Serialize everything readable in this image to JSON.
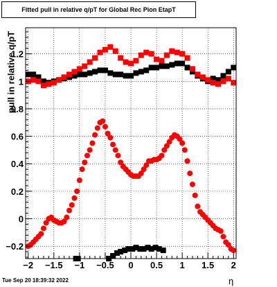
{
  "title": "Fitted pull in relative q/pT for Global Rec Pion EtapT",
  "timestamp": "Tue Sep 20 18:39:32 2022",
  "chart_data": {
    "type": "scatter",
    "title": "Fitted pull in relative q/pT for Global Rec Pion EtapT",
    "xlabel": "η",
    "ylabel": "pull in relative q/pT",
    "xlim": [
      -2.05,
      2.05
    ],
    "ylim": [
      -0.29,
      1.39
    ],
    "xticks": [
      -2,
      -1.5,
      -1,
      -0.5,
      0,
      0.5,
      1,
      1.5,
      2
    ],
    "xtick_labels": [
      "−2",
      "−1.5",
      "−1",
      "−0.5",
      "0",
      "0.5",
      "1",
      "1.5",
      "2"
    ],
    "yticks": [
      -0.2,
      0,
      0.2,
      0.4,
      0.6,
      0.8,
      1,
      1.2
    ],
    "ytick_labels": [
      "−0.2",
      "0",
      "0.2",
      "0.4",
      "0.6",
      "0.8",
      "1",
      "1.2"
    ],
    "grid": true,
    "series": [
      {
        "color": "#000000",
        "marker": "square",
        "points": [
          [
            -2.0,
            1.05
          ],
          [
            -1.9,
            1.05
          ],
          [
            -1.8,
            1.03
          ],
          [
            -1.7,
            1.0
          ],
          [
            -1.6,
            0.99
          ],
          [
            -1.5,
            1.0
          ],
          [
            -1.4,
            1.01
          ],
          [
            -1.3,
            1.02
          ],
          [
            -1.2,
            1.03
          ],
          [
            -1.1,
            1.04
          ],
          [
            -1.0,
            1.05
          ],
          [
            -0.9,
            1.05
          ],
          [
            -0.8,
            1.06
          ],
          [
            -0.7,
            1.07
          ],
          [
            -0.6,
            1.08
          ],
          [
            -0.5,
            1.08
          ],
          [
            -0.4,
            1.06
          ],
          [
            -0.3,
            1.05
          ],
          [
            -0.2,
            1.05
          ],
          [
            -0.1,
            1.04
          ],
          [
            0.0,
            1.04
          ],
          [
            0.1,
            1.06
          ],
          [
            0.2,
            1.07
          ],
          [
            0.3,
            1.08
          ],
          [
            0.4,
            1.1
          ],
          [
            0.5,
            1.1
          ],
          [
            0.6,
            1.11
          ],
          [
            0.7,
            1.11
          ],
          [
            0.8,
            1.12
          ],
          [
            0.9,
            1.13
          ],
          [
            1.0,
            1.13
          ],
          [
            1.1,
            1.1
          ],
          [
            1.2,
            1.07
          ],
          [
            1.3,
            1.04
          ],
          [
            1.4,
            1.02
          ],
          [
            1.5,
            1.0
          ],
          [
            1.6,
            1.02
          ],
          [
            1.7,
            1.01
          ],
          [
            1.8,
            1.04
          ],
          [
            1.9,
            1.07
          ],
          [
            2.0,
            1.1
          ],
          [
            -1.07,
            -0.29
          ],
          [
            -1.03,
            -0.29
          ],
          [
            -0.43,
            -0.29
          ],
          [
            -0.35,
            -0.27
          ],
          [
            -0.27,
            -0.25
          ],
          [
            -0.2,
            -0.24
          ],
          [
            -0.12,
            -0.23
          ],
          [
            -0.05,
            -0.22
          ],
          [
            0.03,
            -0.22
          ],
          [
            0.1,
            -0.21
          ],
          [
            0.18,
            -0.22
          ],
          [
            0.25,
            -0.22
          ],
          [
            0.33,
            -0.21
          ],
          [
            0.4,
            -0.22
          ],
          [
            0.48,
            -0.21
          ],
          [
            0.55,
            -0.22
          ],
          [
            0.63,
            -0.23
          ]
        ]
      },
      {
        "color": "#ff0000",
        "marker": "square",
        "points": [
          [
            -2.0,
            1.0
          ],
          [
            -1.9,
            1.01
          ],
          [
            -1.8,
            1.0
          ],
          [
            -1.7,
            0.97
          ],
          [
            -1.6,
            0.98
          ],
          [
            -1.5,
            0.99
          ],
          [
            -1.4,
            1.01
          ],
          [
            -1.3,
            1.03
          ],
          [
            -1.2,
            1.05
          ],
          [
            -1.1,
            1.07
          ],
          [
            -1.0,
            1.09
          ],
          [
            -0.9,
            1.11
          ],
          [
            -0.8,
            1.14
          ],
          [
            -0.7,
            1.17
          ],
          [
            -0.6,
            1.21
          ],
          [
            -0.5,
            1.23
          ],
          [
            -0.4,
            1.25
          ],
          [
            -0.3,
            1.22
          ],
          [
            -0.2,
            1.17
          ],
          [
            -0.1,
            1.14
          ],
          [
            0.0,
            1.13
          ],
          [
            0.1,
            1.15
          ],
          [
            0.2,
            1.19
          ],
          [
            0.3,
            1.21
          ],
          [
            0.4,
            1.2
          ],
          [
            0.5,
            1.16
          ],
          [
            0.6,
            1.15
          ],
          [
            0.7,
            1.19
          ],
          [
            0.8,
            1.22
          ],
          [
            0.9,
            1.21
          ],
          [
            1.0,
            1.2
          ],
          [
            1.1,
            1.17
          ],
          [
            1.2,
            1.09
          ],
          [
            1.3,
            1.05
          ],
          [
            1.4,
            1.03
          ],
          [
            1.5,
            1.01
          ],
          [
            1.6,
            0.99
          ],
          [
            1.7,
            0.98
          ],
          [
            1.8,
            1.0
          ],
          [
            1.9,
            1.02
          ],
          [
            2.0,
            0.99
          ]
        ]
      },
      {
        "color": "#ff0000",
        "marker": "circle",
        "points": [
          [
            -2.0,
            -0.2
          ],
          [
            -1.95,
            -0.19
          ],
          [
            -1.9,
            -0.17
          ],
          [
            -1.85,
            -0.15
          ],
          [
            -1.8,
            -0.13
          ],
          [
            -1.75,
            -0.11
          ],
          [
            -1.7,
            -0.07
          ],
          [
            -1.65,
            -0.03
          ],
          [
            -1.6,
            0.0
          ],
          [
            -1.55,
            0.01
          ],
          [
            -1.5,
            -0.01
          ],
          [
            -1.45,
            -0.02
          ],
          [
            -1.4,
            -0.03
          ],
          [
            -1.35,
            -0.03
          ],
          [
            -1.3,
            -0.02
          ],
          [
            -1.25,
            0.01
          ],
          [
            -1.2,
            0.06
          ],
          [
            -1.15,
            0.1
          ],
          [
            -1.1,
            0.15
          ],
          [
            -1.05,
            0.2
          ],
          [
            -1.0,
            0.28
          ],
          [
            -0.95,
            0.36
          ],
          [
            -0.9,
            0.41
          ],
          [
            -0.85,
            0.46
          ],
          [
            -0.8,
            0.5
          ],
          [
            -0.75,
            0.55
          ],
          [
            -0.7,
            0.61
          ],
          [
            -0.65,
            0.66
          ],
          [
            -0.6,
            0.7
          ],
          [
            -0.55,
            0.71
          ],
          [
            -0.5,
            0.67
          ],
          [
            -0.45,
            0.62
          ],
          [
            -0.4,
            0.59
          ],
          [
            -0.35,
            0.54
          ],
          [
            -0.3,
            0.5
          ],
          [
            -0.25,
            0.46
          ],
          [
            -0.2,
            0.41
          ],
          [
            -0.15,
            0.38
          ],
          [
            -0.1,
            0.36
          ],
          [
            -0.05,
            0.34
          ],
          [
            0.0,
            0.32
          ],
          [
            0.05,
            0.31
          ],
          [
            0.1,
            0.31
          ],
          [
            0.15,
            0.31
          ],
          [
            0.2,
            0.33
          ],
          [
            0.25,
            0.36
          ],
          [
            0.3,
            0.39
          ],
          [
            0.35,
            0.42
          ],
          [
            0.4,
            0.42
          ],
          [
            0.45,
            0.43
          ],
          [
            0.5,
            0.43
          ],
          [
            0.55,
            0.44
          ],
          [
            0.6,
            0.46
          ],
          [
            0.65,
            0.5
          ],
          [
            0.7,
            0.53
          ],
          [
            0.75,
            0.56
          ],
          [
            0.8,
            0.59
          ],
          [
            0.85,
            0.61
          ],
          [
            0.9,
            0.6
          ],
          [
            0.95,
            0.58
          ],
          [
            1.0,
            0.55
          ],
          [
            1.05,
            0.5
          ],
          [
            1.1,
            0.42
          ],
          [
            1.15,
            0.33
          ],
          [
            1.2,
            0.25
          ],
          [
            1.25,
            0.17
          ],
          [
            1.3,
            0.09
          ],
          [
            1.35,
            0.05
          ],
          [
            1.4,
            0.03
          ],
          [
            1.45,
            0.01
          ],
          [
            1.5,
            -0.01
          ],
          [
            1.55,
            -0.03
          ],
          [
            1.6,
            -0.05
          ],
          [
            1.65,
            -0.07
          ],
          [
            1.7,
            -0.08
          ],
          [
            1.75,
            -0.09
          ],
          [
            1.8,
            -0.13
          ],
          [
            1.85,
            -0.17
          ],
          [
            1.9,
            -0.19
          ],
          [
            1.95,
            -0.22
          ],
          [
            2.0,
            -0.23
          ]
        ]
      }
    ]
  }
}
